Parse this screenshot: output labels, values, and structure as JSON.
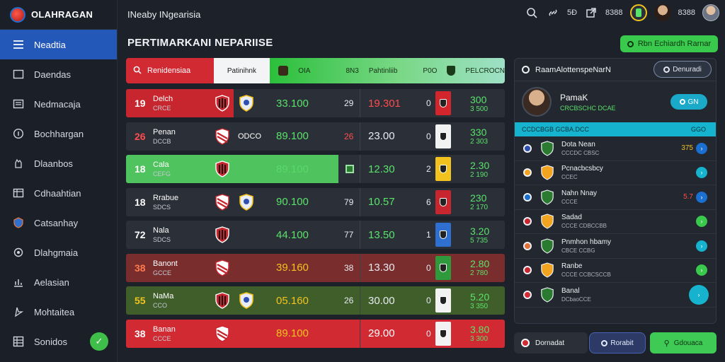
{
  "app": {
    "name": "OLAHRAGAN",
    "topbar_title": "INeaby INgearisia"
  },
  "sidebar": {
    "items": [
      {
        "label": "Neadtia",
        "icon": "menu-icon",
        "active": true
      },
      {
        "label": "Daendas",
        "icon": "image-icon"
      },
      {
        "label": "Nedmacaja",
        "icon": "list-icon"
      },
      {
        "label": "Bochhargan",
        "icon": "info-icon"
      },
      {
        "label": "Dlaanbos",
        "icon": "hand-icon"
      },
      {
        "label": "Cdhaahtian",
        "icon": "table-icon"
      },
      {
        "label": "Catsanhay",
        "icon": "shield-icon"
      },
      {
        "label": "Dlahgmaia",
        "icon": "settings-icon"
      },
      {
        "label": "Aelasian",
        "icon": "chart-icon"
      },
      {
        "label": "Mohtaitea",
        "icon": "pointer-icon"
      },
      {
        "label": "Sonidos",
        "icon": "grid-icon",
        "badge": "✓"
      }
    ]
  },
  "topbar": {
    "right_values": [
      "5Ð",
      "8388",
      "8388"
    ],
    "icons": [
      "search-icon",
      "link-icon",
      "external-icon",
      "trophy-icon",
      "user-avatar",
      "avatar"
    ]
  },
  "main": {
    "title": "PERTIMARKANI NEPARIISE",
    "action_button": "Rbn Echiardh Rarnar",
    "header": {
      "red_label": "Renidensiaa",
      "white_label": "Patinihnk",
      "green_items": [
        "OIA",
        "8N3",
        "Pahtinliib",
        "P0O",
        "PELCROCN"
      ]
    },
    "rows": [
      {
        "rank": "19",
        "name": "Delch",
        "sub": "CRCE",
        "v1": "33.100",
        "v2": "29",
        "v3": "19.301",
        "v4": "0",
        "v5a": "300",
        "v5b": "3 500",
        "band": "#c8262f",
        "band_w": 152,
        "v1c": "#59e36a",
        "v3c": "#ff4d4d",
        "strip": "#d3262c"
      },
      {
        "rank": "26",
        "name": "Penan",
        "sub": "DCCB",
        "crest_text": "ODCO",
        "v1": "89.100",
        "v2": "26",
        "v3": "23.00",
        "v4": "0",
        "v5a": "330",
        "v5b": "2 303",
        "band": "",
        "band_w": 0,
        "v1c": "#59e36a",
        "v3c": "#e8ebf1",
        "rankc": "#ff4d4d",
        "v2c": "#ff4d4d",
        "strip": "#f2f2f2"
      },
      {
        "rank": "18",
        "name": "Cala",
        "sub": "CEFG",
        "v1": "89.100",
        "v2": "",
        "v3": "12.30",
        "v4": "2",
        "v5a": "2.30",
        "v5b": "2 190",
        "band": "#4fc35d",
        "band_w": 300,
        "v1c": "#5ad96a",
        "v3c": "#59e36a",
        "strip": "#f2c31f"
      },
      {
        "rank": "18",
        "name": "Rrabue",
        "sub": "SDCS",
        "v1": "90.100",
        "v2": "79",
        "v3": "10.57",
        "v4": "6",
        "v5a": "230",
        "v5b": "2 170",
        "band": "",
        "band_w": 0,
        "v1c": "#59e36a",
        "v3c": "#59e36a",
        "strip": "#c8262f"
      },
      {
        "rank": "72",
        "name": "Nala",
        "sub": "SDCS",
        "v1": "44.100",
        "v2": "77",
        "v3": "13.50",
        "v4": "1",
        "v5a": "3.20",
        "v5b": "5 735",
        "band": "",
        "band_w": 0,
        "v1c": "#59e36a",
        "v3c": "#59e36a",
        "strip": "#2f6fd0"
      },
      {
        "rank": "38",
        "name": "Banont",
        "sub": "GCCE",
        "v1": "39.160",
        "v2": "38",
        "v3": "13.30",
        "v4": "0",
        "v5a": "2.80",
        "v5b": "2 780",
        "band": "#7a2d2d",
        "band_w": 535,
        "v1c": "#f2c31f",
        "v3c": "#e8ebf1",
        "rankc": "#ff7b4d",
        "strip": "#2f9a3c"
      },
      {
        "rank": "55",
        "name": "NaMa",
        "sub": "CCO",
        "v1": "05.160",
        "v2": "26",
        "v3": "30.00",
        "v4": "0",
        "v5a": "5.20",
        "v5b": "3 350",
        "band": "#3f5e2a",
        "band_w": 535,
        "v1c": "#f2c31f",
        "v3c": "#e8ebf1",
        "rankc": "#f2c31f",
        "strip": "#f2f2f2"
      },
      {
        "rank": "38",
        "name": "Banan",
        "sub": "CCCE",
        "v1": "89.100",
        "v2": "",
        "v3": "29.00",
        "v4": "0",
        "v5a": "3.80",
        "v5b": "3 300",
        "band": "#d12a33",
        "band_w": 535,
        "v1c": "#f2c31f",
        "v3c": "#ffffff",
        "rankc": "#ffffff",
        "strip": "#f2f2f2"
      }
    ]
  },
  "panel": {
    "title": "RaamAlottenspeNarN",
    "head_button": "Denuradi",
    "profile": {
      "name": "PamaK",
      "sub": "CRCBSCHC DCAE",
      "pill": "GN"
    },
    "cyan": {
      "left": "CCDCBGB GCBA.DCC",
      "right": "GGO"
    },
    "rows": [
      {
        "name": "Dota Nean",
        "sub": "CCCDC CBSC",
        "val": "375",
        "valc": "#f2c31f",
        "circ": "#1a6fd1",
        "ic": "shield-icon"
      },
      {
        "name": "Pcnacbcsbcy",
        "sub": "CCEC",
        "val": "",
        "valc": "#59e36a",
        "circ": "#16b3cf",
        "ic": "lion-icon"
      },
      {
        "name": "Nahn Nnay",
        "sub": "CCCE",
        "val": "5.7",
        "valc": "#ff4d4d",
        "circ": "#1a6fd1",
        "ic": "star-icon"
      },
      {
        "name": "Sadad",
        "sub": "CCCE CDBCCBB",
        "val": "",
        "valc": "#59e36a",
        "circ": "#39c94c",
        "ic": "hat-icon"
      },
      {
        "name": "Pnmhon hbamy",
        "sub": "CBCE CCBG",
        "val": "",
        "valc": "#59e36a",
        "circ": "#16b3cf",
        "ic": "rabbit-icon"
      },
      {
        "name": "Ranbe",
        "sub": "CCCE CCBCSCCB",
        "val": "",
        "valc": "#ff4d4d",
        "circ": "#39c94c",
        "ic": "ball-icon"
      },
      {
        "name": "Banal",
        "sub": "DCbaoCCE",
        "val": "",
        "valc": "#59e36a",
        "circ": "#16b3cf",
        "ic": "crest-icon"
      }
    ]
  },
  "bottombar": {
    "label": "Dornadat",
    "btn1": "Rorabit",
    "btn2": "Gdouaca"
  }
}
